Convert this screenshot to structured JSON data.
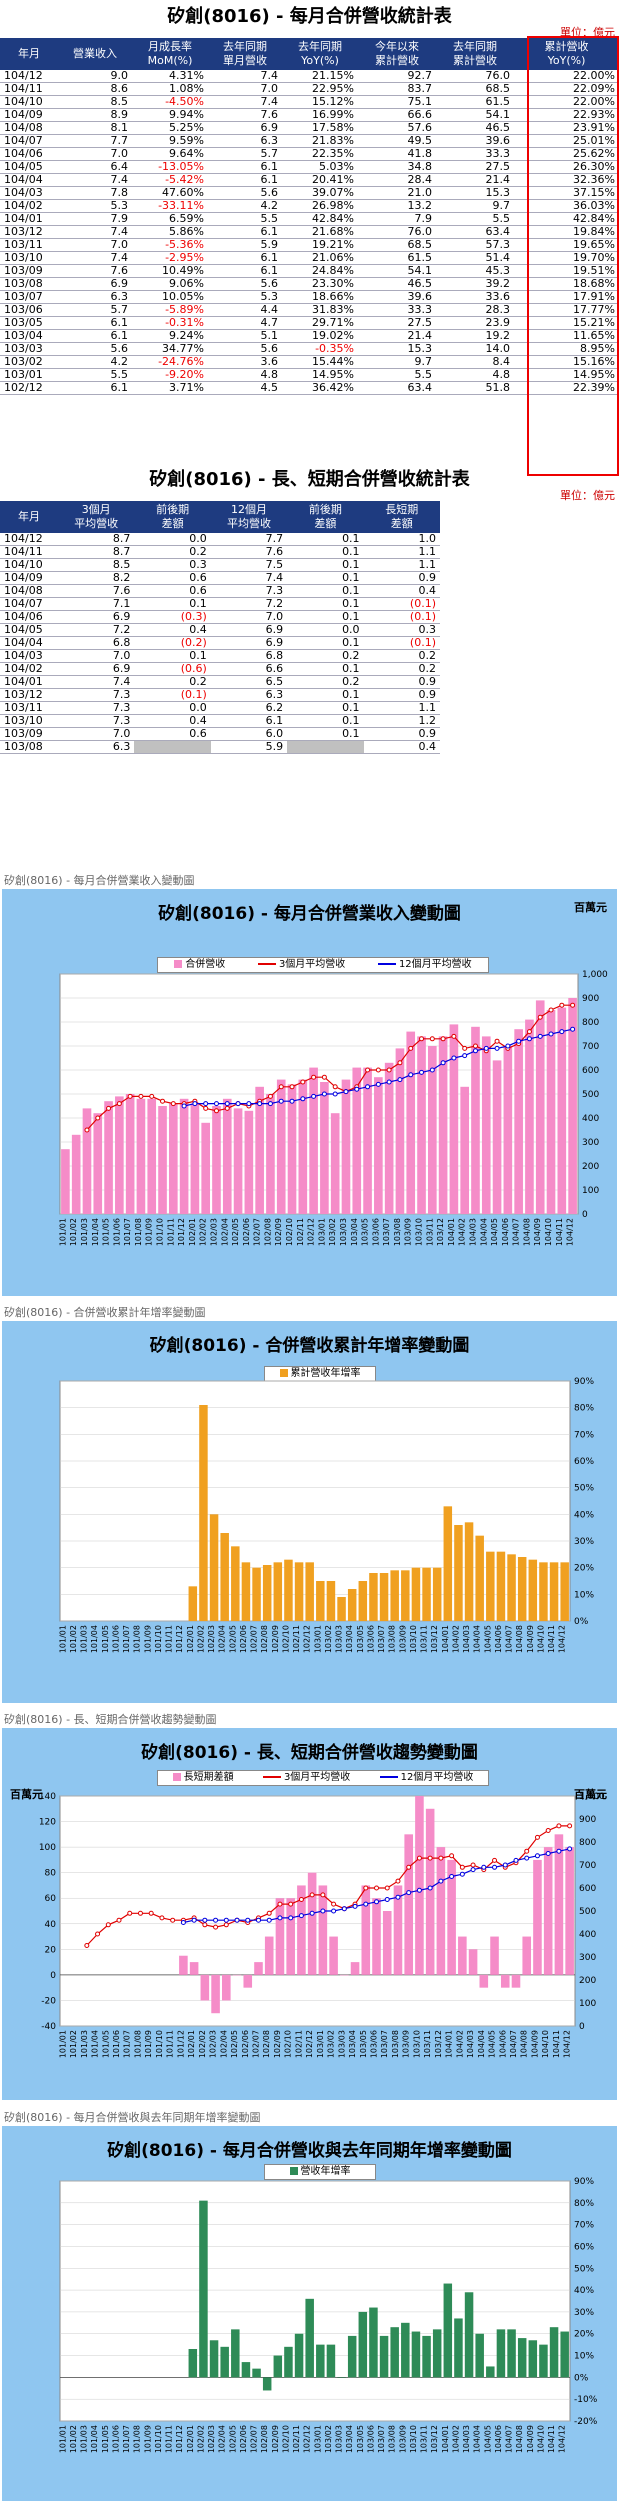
{
  "table1": {
    "title": "矽創(8016) - 每月合併營收統計表",
    "unit": "單位：億元",
    "headers": [
      "年月",
      "營業收入",
      "月成長率\nMoM(%)",
      "去年同期\n單月營收",
      "去年同期\nYoY(%)",
      "今年以來\n累計營收",
      "去年同期\n累計營收",
      "累計營收\nYoY(%)"
    ],
    "rows": [
      [
        "104/12",
        "9.0",
        "4.31%",
        "7.4",
        "21.15%",
        "92.7",
        "76.0",
        "22.00%"
      ],
      [
        "104/11",
        "8.6",
        "1.08%",
        "7.0",
        "22.95%",
        "83.7",
        "68.5",
        "22.09%"
      ],
      [
        "104/10",
        "8.5",
        "-4.50%",
        "7.4",
        "15.12%",
        "75.1",
        "61.5",
        "22.00%"
      ],
      [
        "104/09",
        "8.9",
        "9.94%",
        "7.6",
        "16.99%",
        "66.6",
        "54.1",
        "22.93%"
      ],
      [
        "104/08",
        "8.1",
        "5.25%",
        "6.9",
        "17.58%",
        "57.6",
        "46.5",
        "23.91%"
      ],
      [
        "104/07",
        "7.7",
        "9.59%",
        "6.3",
        "21.83%",
        "49.5",
        "39.6",
        "25.01%"
      ],
      [
        "104/06",
        "7.0",
        "9.64%",
        "5.7",
        "22.35%",
        "41.8",
        "33.3",
        "25.62%"
      ],
      [
        "104/05",
        "6.4",
        "-13.05%",
        "6.1",
        "5.03%",
        "34.8",
        "27.5",
        "26.30%"
      ],
      [
        "104/04",
        "7.4",
        "-5.42%",
        "6.1",
        "20.41%",
        "28.4",
        "21.4",
        "32.36%"
      ],
      [
        "104/03",
        "7.8",
        "47.60%",
        "5.6",
        "39.07%",
        "21.0",
        "15.3",
        "37.15%"
      ],
      [
        "104/02",
        "5.3",
        "-33.11%",
        "4.2",
        "26.98%",
        "13.2",
        "9.7",
        "36.03%"
      ],
      [
        "104/01",
        "7.9",
        "6.59%",
        "5.5",
        "42.84%",
        "7.9",
        "5.5",
        "42.84%"
      ],
      [
        "103/12",
        "7.4",
        "5.86%",
        "6.1",
        "21.68%",
        "76.0",
        "63.4",
        "19.84%"
      ],
      [
        "103/11",
        "7.0",
        "-5.36%",
        "5.9",
        "19.21%",
        "68.5",
        "57.3",
        "19.65%"
      ],
      [
        "103/10",
        "7.4",
        "-2.95%",
        "6.1",
        "21.06%",
        "61.5",
        "51.4",
        "19.70%"
      ],
      [
        "103/09",
        "7.6",
        "10.49%",
        "6.1",
        "24.84%",
        "54.1",
        "45.3",
        "19.51%"
      ],
      [
        "103/08",
        "6.9",
        "9.06%",
        "5.6",
        "23.30%",
        "46.5",
        "39.2",
        "18.68%"
      ],
      [
        "103/07",
        "6.3",
        "10.05%",
        "5.3",
        "18.66%",
        "39.6",
        "33.6",
        "17.91%"
      ],
      [
        "103/06",
        "5.7",
        "-5.89%",
        "4.4",
        "31.83%",
        "33.3",
        "28.3",
        "17.77%"
      ],
      [
        "103/05",
        "6.1",
        "-0.31%",
        "4.7",
        "29.71%",
        "27.5",
        "23.9",
        "15.21%"
      ],
      [
        "103/04",
        "6.1",
        "9.24%",
        "5.1",
        "19.02%",
        "21.4",
        "19.2",
        "11.65%"
      ],
      [
        "103/03",
        "5.6",
        "34.77%",
        "5.6",
        "-0.35%",
        "15.3",
        "14.0",
        "8.95%"
      ],
      [
        "103/02",
        "4.2",
        "-24.76%",
        "3.6",
        "15.44%",
        "9.7",
        "8.4",
        "15.16%"
      ],
      [
        "103/01",
        "5.5",
        "-9.20%",
        "4.8",
        "14.95%",
        "5.5",
        "4.8",
        "14.95%"
      ],
      [
        "102/12",
        "6.1",
        "3.71%",
        "4.5",
        "36.42%",
        "63.4",
        "51.8",
        "22.39%"
      ]
    ]
  },
  "table2": {
    "title": "矽創(8016) - 長、短期合併營收統計表",
    "unit": "單位：億元",
    "headers": [
      "年月",
      "3個月\n平均營收",
      "前後期\n差額",
      "12個月\n平均營收",
      "前後期\n差額",
      "長短期\n差額"
    ],
    "rows": [
      [
        "104/12",
        "8.7",
        "0.0",
        "7.7",
        "0.1",
        "1.0"
      ],
      [
        "104/11",
        "8.7",
        "0.2",
        "7.6",
        "0.1",
        "1.1"
      ],
      [
        "104/10",
        "8.5",
        "0.3",
        "7.5",
        "0.1",
        "1.1"
      ],
      [
        "104/09",
        "8.2",
        "0.6",
        "7.4",
        "0.1",
        "0.9"
      ],
      [
        "104/08",
        "7.6",
        "0.6",
        "7.3",
        "0.1",
        "0.4"
      ],
      [
        "104/07",
        "7.1",
        "0.1",
        "7.2",
        "0.1",
        "(0.1)"
      ],
      [
        "104/06",
        "6.9",
        "(0.3)",
        "7.0",
        "0.1",
        "(0.1)"
      ],
      [
        "104/05",
        "7.2",
        "0.4",
        "6.9",
        "0.0",
        "0.3"
      ],
      [
        "104/04",
        "6.8",
        "(0.2)",
        "6.9",
        "0.1",
        "(0.1)"
      ],
      [
        "104/03",
        "7.0",
        "0.1",
        "6.8",
        "0.2",
        "0.2"
      ],
      [
        "104/02",
        "6.9",
        "(0.6)",
        "6.6",
        "0.1",
        "0.2"
      ],
      [
        "104/01",
        "7.4",
        "0.2",
        "6.5",
        "0.2",
        "0.9"
      ],
      [
        "103/12",
        "7.3",
        "(0.1)",
        "6.3",
        "0.1",
        "0.9"
      ],
      [
        "103/11",
        "7.3",
        "0.0",
        "6.2",
        "0.1",
        "1.1"
      ],
      [
        "103/10",
        "7.3",
        "0.4",
        "6.1",
        "0.1",
        "1.2"
      ],
      [
        "103/09",
        "7.0",
        "0.6",
        "6.0",
        "0.1",
        "0.9"
      ],
      [
        "103/08",
        "6.3",
        "",
        "5.9",
        "",
        "0.4"
      ]
    ]
  },
  "chart_data": [
    {
      "type": "bar",
      "caption": "矽創(8016) - 每月合併營業收入變動圖",
      "title": "矽創(8016) - 每月合併營業收入變動圖",
      "unit_label": "百萬元",
      "categories": [
        "101/01",
        "101/02",
        "101/03",
        "101/04",
        "101/05",
        "101/06",
        "101/07",
        "101/08",
        "101/09",
        "101/10",
        "101/11",
        "101/12",
        "102/01",
        "102/02",
        "102/03",
        "102/04",
        "102/05",
        "102/06",
        "102/07",
        "102/08",
        "102/09",
        "102/10",
        "102/11",
        "102/12",
        "103/01",
        "103/02",
        "103/03",
        "103/04",
        "103/05",
        "103/06",
        "103/07",
        "103/08",
        "103/09",
        "103/10",
        "103/11",
        "103/12",
        "104/01",
        "104/02",
        "104/03",
        "104/04",
        "104/05",
        "104/06",
        "104/07",
        "104/08",
        "104/09",
        "104/10",
        "104/11",
        "104/12"
      ],
      "ylim": [
        0,
        1000
      ],
      "yticks": [
        0,
        100,
        200,
        300,
        400,
        500,
        600,
        700,
        800,
        900,
        1000
      ],
      "series": [
        {
          "name": "合併營收",
          "color": "#f58cc8",
          "values": [
            270,
            330,
            440,
            420,
            470,
            490,
            500,
            480,
            480,
            450,
            460,
            480,
            460,
            380,
            450,
            480,
            440,
            430,
            530,
            500,
            560,
            540,
            560,
            610,
            550,
            420,
            560,
            610,
            610,
            570,
            630,
            690,
            760,
            740,
            700,
            740,
            790,
            530,
            780,
            740,
            640,
            700,
            770,
            810,
            890,
            850,
            860,
            900
          ]
        },
        {
          "name": "3個月平均營收",
          "color": "#e00000",
          "values": [
            null,
            null,
            350,
            400,
            440,
            460,
            490,
            490,
            490,
            470,
            460,
            460,
            470,
            440,
            430,
            440,
            460,
            450,
            470,
            490,
            530,
            530,
            550,
            570,
            570,
            530,
            510,
            530,
            600,
            600,
            600,
            630,
            690,
            730,
            730,
            730,
            740,
            690,
            700,
            680,
            720,
            690,
            710,
            760,
            820,
            850,
            870,
            870
          ]
        },
        {
          "name": "12個月平均營收",
          "color": "#0000e0",
          "values": [
            null,
            null,
            null,
            null,
            null,
            null,
            null,
            null,
            null,
            null,
            null,
            450,
            460,
            460,
            460,
            460,
            460,
            460,
            460,
            460,
            470,
            470,
            480,
            490,
            500,
            500,
            510,
            520,
            530,
            540,
            550,
            560,
            580,
            590,
            600,
            630,
            650,
            660,
            680,
            690,
            690,
            700,
            720,
            730,
            740,
            750,
            760,
            770
          ]
        }
      ]
    },
    {
      "type": "bar",
      "caption": "矽創(8016) - 合併營收累計年增率變動圖",
      "title": "矽創(8016) - 合併營收累計年增率變動圖",
      "categories": [
        "101/01",
        "101/02",
        "101/03",
        "101/04",
        "101/05",
        "101/06",
        "101/07",
        "101/08",
        "101/09",
        "101/10",
        "101/11",
        "101/12",
        "102/01",
        "102/02",
        "102/03",
        "102/04",
        "102/05",
        "102/06",
        "102/07",
        "102/08",
        "102/09",
        "102/10",
        "102/11",
        "102/12",
        "103/01",
        "103/02",
        "103/03",
        "103/04",
        "103/05",
        "103/06",
        "103/07",
        "103/08",
        "103/09",
        "103/10",
        "103/11",
        "103/12",
        "104/01",
        "104/02",
        "104/03",
        "104/04",
        "104/05",
        "104/06",
        "104/07",
        "104/08",
        "104/09",
        "104/10",
        "104/11",
        "104/12"
      ],
      "ylim": [
        0,
        90
      ],
      "yticks": [
        0,
        10,
        20,
        30,
        40,
        50,
        60,
        70,
        80,
        90
      ],
      "series": [
        {
          "name": "累計營收年增率",
          "color": "#f0a020",
          "values": [
            null,
            null,
            null,
            null,
            null,
            null,
            null,
            null,
            null,
            null,
            null,
            null,
            13,
            81,
            40,
            33,
            28,
            22,
            20,
            21,
            22,
            23,
            22,
            22,
            15,
            15,
            9,
            12,
            15,
            18,
            18,
            19,
            19,
            20,
            20,
            20,
            43,
            36,
            37,
            32,
            26,
            26,
            25,
            24,
            23,
            22,
            22,
            22
          ]
        }
      ]
    },
    {
      "type": "bar",
      "caption": "矽創(8016) - 長、短期合併營收趨勢變動圖",
      "title": "矽創(8016) - 長、短期合併營收趨勢變動圖",
      "unit_label_left": "百萬元",
      "unit_label_right": "百萬元",
      "categories": [
        "101/01",
        "101/02",
        "101/03",
        "101/04",
        "101/05",
        "101/06",
        "101/07",
        "101/08",
        "101/09",
        "101/10",
        "101/11",
        "101/12",
        "102/01",
        "102/02",
        "102/03",
        "102/04",
        "102/05",
        "102/06",
        "102/07",
        "102/08",
        "102/09",
        "102/10",
        "102/11",
        "102/12",
        "103/01",
        "103/02",
        "103/03",
        "103/04",
        "103/05",
        "103/06",
        "103/07",
        "103/08",
        "103/09",
        "103/10",
        "103/11",
        "103/12",
        "104/01",
        "104/02",
        "104/03",
        "104/04",
        "104/05",
        "104/06",
        "104/07",
        "104/08",
        "104/09",
        "104/10",
        "104/11",
        "104/12"
      ],
      "ylim_left": [
        -40,
        140
      ],
      "yticks_left": [
        -40,
        -20,
        0,
        20,
        40,
        60,
        80,
        100,
        120,
        140
      ],
      "ylim_right": [
        0,
        1000
      ],
      "yticks_right": [
        0,
        100,
        200,
        300,
        400,
        500,
        600,
        700,
        800,
        900,
        1000
      ],
      "series": [
        {
          "name": "長短期差額",
          "color": "#f58cc8",
          "axis": "left",
          "values": [
            null,
            null,
            null,
            null,
            null,
            null,
            null,
            null,
            null,
            null,
            null,
            15,
            10,
            -20,
            -30,
            -20,
            0,
            -10,
            10,
            30,
            60,
            60,
            70,
            80,
            70,
            30,
            0,
            10,
            70,
            60,
            50,
            70,
            110,
            140,
            130,
            100,
            90,
            30,
            20,
            -10,
            30,
            -10,
            -10,
            30,
            90,
            100,
            110,
            100
          ]
        },
        {
          "name": "3個月平均營收",
          "color": "#e00000",
          "axis": "right",
          "values": [
            null,
            null,
            350,
            400,
            440,
            460,
            490,
            490,
            490,
            470,
            460,
            460,
            470,
            440,
            430,
            440,
            460,
            450,
            470,
            490,
            530,
            530,
            550,
            570,
            570,
            530,
            510,
            530,
            600,
            600,
            600,
            630,
            690,
            730,
            730,
            730,
            740,
            690,
            700,
            680,
            720,
            690,
            710,
            760,
            820,
            850,
            870,
            870
          ]
        },
        {
          "name": "12個月平均營收",
          "color": "#0000e0",
          "axis": "right",
          "values": [
            null,
            null,
            null,
            null,
            null,
            null,
            null,
            null,
            null,
            null,
            null,
            450,
            460,
            460,
            460,
            460,
            460,
            460,
            460,
            460,
            470,
            470,
            480,
            490,
            500,
            500,
            510,
            520,
            530,
            540,
            550,
            560,
            580,
            590,
            600,
            630,
            650,
            660,
            680,
            690,
            690,
            700,
            720,
            730,
            740,
            750,
            760,
            770
          ]
        }
      ]
    },
    {
      "type": "bar",
      "caption": "矽創(8016) - 每月合併營收與去年同期年增率變動圖",
      "title": "矽創(8016) - 每月合併營收與去年同期年增率變動圖",
      "categories": [
        "101/01",
        "101/02",
        "101/03",
        "101/04",
        "101/05",
        "101/06",
        "101/07",
        "101/08",
        "101/09",
        "101/10",
        "101/11",
        "101/12",
        "102/01",
        "102/02",
        "102/03",
        "102/04",
        "102/05",
        "102/06",
        "102/07",
        "102/08",
        "102/09",
        "102/10",
        "102/11",
        "102/12",
        "103/01",
        "103/02",
        "103/03",
        "103/04",
        "103/05",
        "103/06",
        "103/07",
        "103/08",
        "103/09",
        "103/10",
        "103/11",
        "103/12",
        "104/01",
        "104/02",
        "104/03",
        "104/04",
        "104/05",
        "104/06",
        "104/07",
        "104/08",
        "104/09",
        "104/10",
        "104/11",
        "104/12"
      ],
      "ylim": [
        -20,
        90
      ],
      "yticks": [
        -20,
        -10,
        0,
        10,
        20,
        30,
        40,
        50,
        60,
        70,
        80,
        90
      ],
      "series": [
        {
          "name": "營收年增率",
          "color": "#2e8b57",
          "values": [
            null,
            null,
            null,
            null,
            null,
            null,
            null,
            null,
            null,
            null,
            null,
            null,
            13,
            81,
            17,
            14,
            22,
            7,
            4,
            -6,
            10,
            14,
            20,
            36,
            15,
            15,
            0,
            19,
            30,
            32,
            19,
            23,
            25,
            21,
            19,
            22,
            43,
            27,
            39,
            20,
            5,
            22,
            22,
            18,
            17,
            15,
            23,
            21
          ]
        }
      ]
    }
  ]
}
